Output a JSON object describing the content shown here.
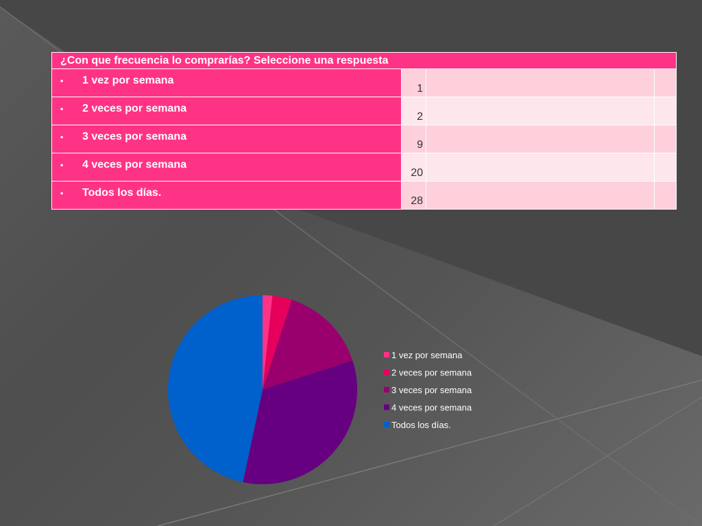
{
  "table": {
    "title": "¿Con que frecuencia lo comprarías? Seleccione una respuesta",
    "bullet": "•",
    "rows": [
      {
        "label": "1 vez por semana",
        "value": "1"
      },
      {
        "label": "2 veces por semana",
        "value": "2"
      },
      {
        "label": "3 veces por semana",
        "value": "9"
      },
      {
        "label": "4 veces por semana",
        "value": "20"
      },
      {
        "label": "Todos los días.",
        "value": "28"
      }
    ]
  },
  "chart_data": {
    "type": "pie",
    "title": "",
    "categories": [
      "1 vez por semana",
      "2 veces por semana",
      "3 veces por semana",
      "4 veces por semana",
      "Todos los días."
    ],
    "values": [
      1,
      2,
      9,
      20,
      28
    ],
    "colors": [
      "#ff3385",
      "#e6005c",
      "#99006e",
      "#660080",
      "#0060cc"
    ],
    "legend_position": "right"
  }
}
